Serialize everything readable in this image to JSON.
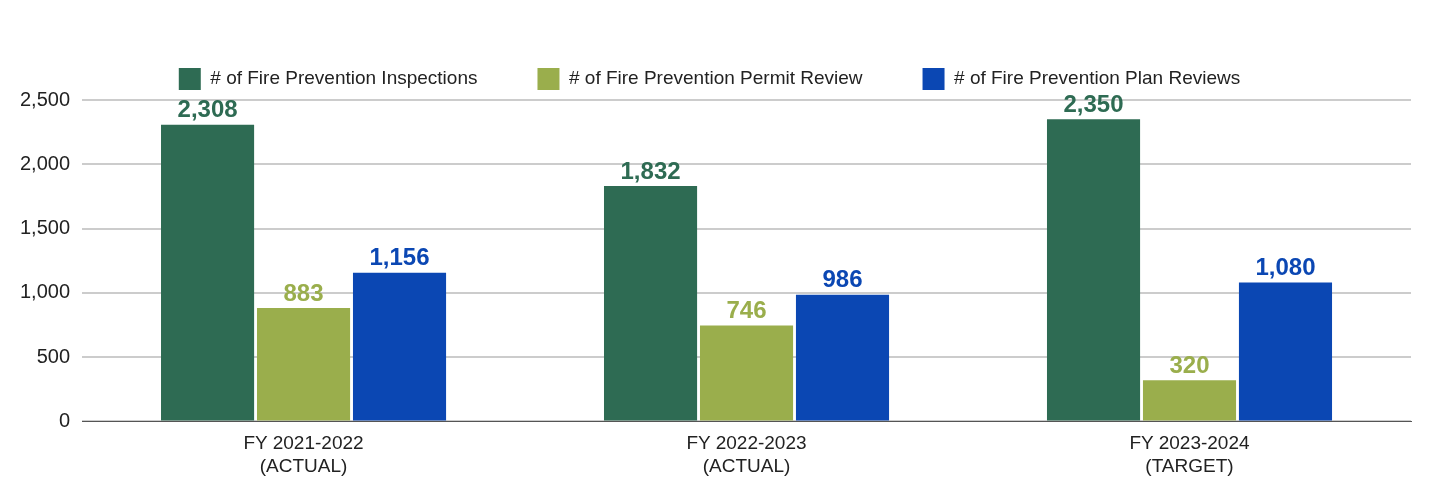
{
  "chart_data": {
    "type": "bar",
    "categories": [
      "FY 2021-2022\n(ACTUAL)",
      "FY 2022-2023\n(ACTUAL)",
      "FY 2023-2024\n(TARGET)"
    ],
    "series": [
      {
        "name": "# of Fire Prevention Inspections",
        "color": "#2e6b53",
        "values": [
          2308,
          1832,
          2350
        ],
        "value_labels": [
          "2,308",
          "1,832",
          "2,350"
        ]
      },
      {
        "name": "# of Fire Prevention Permit Review",
        "color": "#9aae4c",
        "values": [
          883,
          746,
          320
        ],
        "value_labels": [
          "883",
          "746",
          "320"
        ]
      },
      {
        "name": "# of Fire Prevention Plan Reviews",
        "color": "#0b47b3",
        "values": [
          1156,
          986,
          1080
        ],
        "value_labels": [
          "1,156",
          "986",
          "1,080"
        ]
      }
    ],
    "ylim": [
      0,
      2500
    ],
    "yticks": [
      {
        "value": 0,
        "label": "0"
      },
      {
        "value": 500,
        "label": "500"
      },
      {
        "value": 1000,
        "label": "1,000"
      },
      {
        "value": 1500,
        "label": "1,500"
      },
      {
        "value": 2000,
        "label": "2,000"
      },
      {
        "value": 2500,
        "label": "2,500"
      }
    ],
    "grid": "y",
    "legend": "top"
  }
}
